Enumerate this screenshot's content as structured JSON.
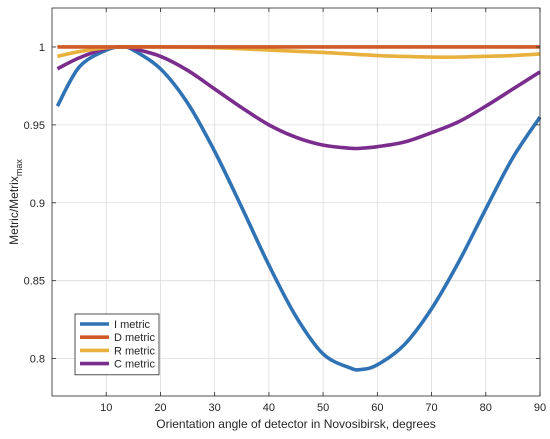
{
  "chart_data": {
    "type": "line",
    "xlabel": "Orientation angle of detector in Novosibirsk, degrees",
    "ylabel": {
      "main": "Metric/Metrix",
      "sub": "max"
    },
    "xlim": [
      0,
      90
    ],
    "ylim": [
      0.776,
      1.025
    ],
    "xticks": [
      "10",
      "20",
      "30",
      "40",
      "50",
      "60",
      "70",
      "80",
      "90"
    ],
    "yticks": [
      "0.8",
      "0.85",
      "0.9",
      "0.95",
      "1"
    ],
    "grid": true,
    "legend_position": "bottom-left",
    "series": [
      {
        "name": "I metric",
        "color": "#2f73b5",
        "x": [
          1,
          5,
          10,
          13,
          15,
          20,
          25,
          30,
          35,
          40,
          45,
          50,
          55,
          57,
          60,
          65,
          70,
          75,
          80,
          85,
          90
        ],
        "y": [
          0.962,
          0.987,
          0.998,
          1.0,
          0.998,
          0.986,
          0.964,
          0.933,
          0.897,
          0.86,
          0.827,
          0.803,
          0.794,
          0.793,
          0.796,
          0.809,
          0.832,
          0.862,
          0.896,
          0.929,
          0.955
        ]
      },
      {
        "name": "D metric",
        "color": "#cf5a26",
        "x": [
          1,
          90
        ],
        "y": [
          1.0,
          1.0
        ]
      },
      {
        "name": "R metric",
        "color": "#e8b13d",
        "x": [
          1,
          5,
          10,
          13,
          20,
          30,
          40,
          50,
          60,
          70,
          75,
          80,
          85,
          90
        ],
        "y": [
          0.994,
          0.997,
          0.9995,
          1.0,
          1.0,
          0.9995,
          0.998,
          0.9965,
          0.9945,
          0.9935,
          0.9935,
          0.994,
          0.9945,
          0.9955
        ]
      },
      {
        "name": "C metric",
        "color": "#7a2d8c",
        "x": [
          1,
          5,
          10,
          13,
          15,
          20,
          25,
          30,
          35,
          40,
          45,
          50,
          55,
          57,
          60,
          65,
          70,
          75,
          80,
          85,
          90
        ],
        "y": [
          0.986,
          0.993,
          0.999,
          1.0,
          0.999,
          0.994,
          0.985,
          0.973,
          0.961,
          0.95,
          0.942,
          0.937,
          0.935,
          0.935,
          0.936,
          0.939,
          0.945,
          0.952,
          0.962,
          0.973,
          0.984
        ]
      }
    ]
  }
}
